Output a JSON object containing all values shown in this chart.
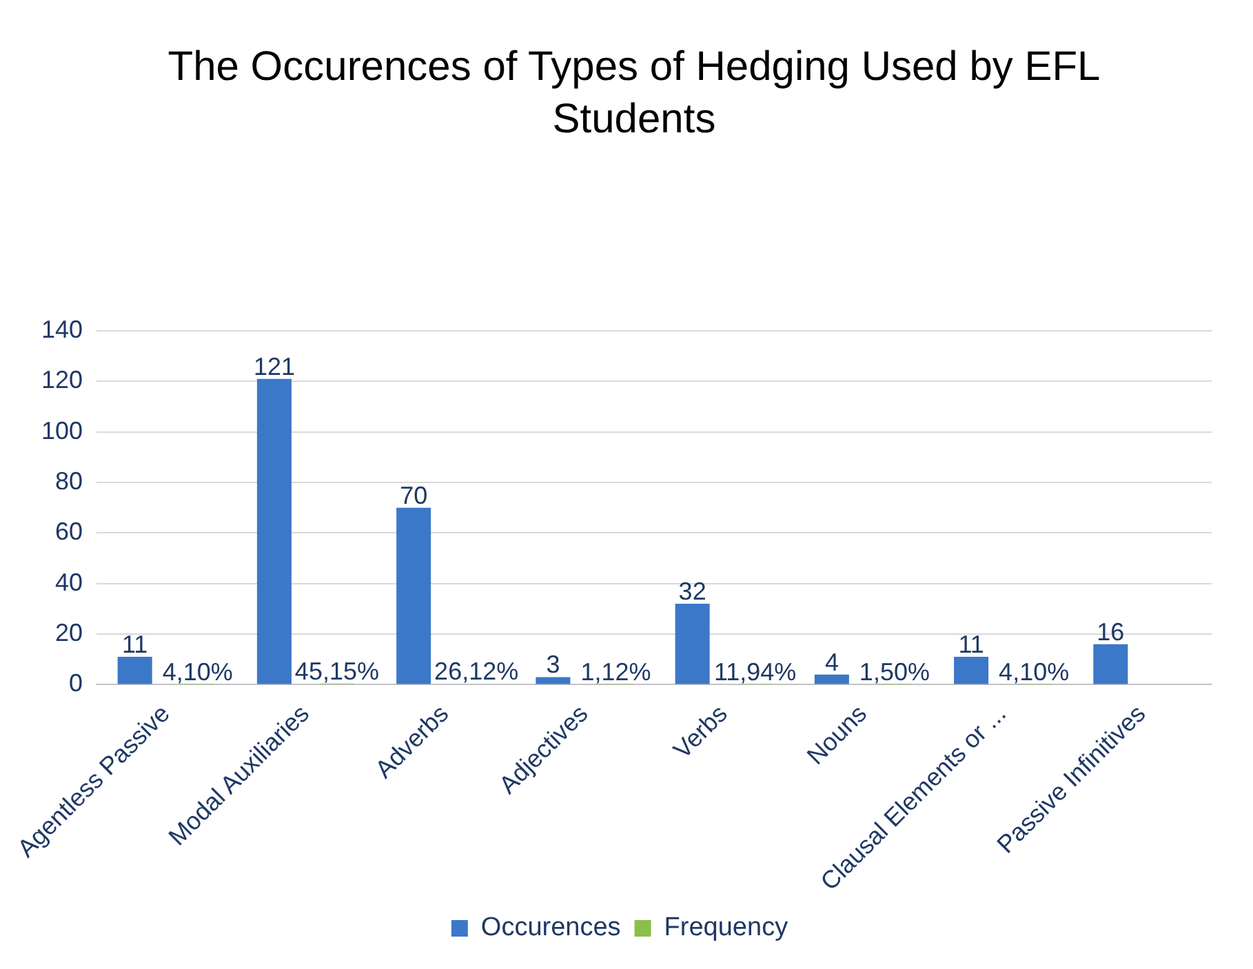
{
  "chart_data": {
    "type": "bar",
    "title": "The Occurences of Types of Hedging Used by EFL Students",
    "categories": [
      "Agentless Passive",
      "Modal Auxiliaries",
      "Adverbs",
      "Adjectives",
      "Verbs",
      "Nouns",
      "Clausal Elements or ...",
      "Passive Infinitives"
    ],
    "series": [
      {
        "name": "Occurences",
        "color": "#3c78c8",
        "values": [
          11,
          121,
          70,
          3,
          32,
          4,
          11,
          16
        ],
        "value_labels": [
          "11",
          "121",
          "70",
          "3",
          "32",
          "4",
          "11",
          "16"
        ]
      },
      {
        "name": "Frequency",
        "color": "#8cbf4a",
        "values": [
          0.041,
          0.4515,
          0.2612,
          0.0112,
          0.1194,
          0.015,
          0.041,
          null
        ],
        "value_labels": [
          "4,10%",
          "45,15%",
          "26,12%",
          "1,12%",
          "11,94%",
          "1,50%",
          "4,10%",
          null
        ]
      }
    ],
    "ylim": [
      0,
      140
    ],
    "yticks": [
      0,
      20,
      40,
      60,
      80,
      100,
      120,
      140
    ],
    "grid": "y",
    "legend": "bottom"
  }
}
